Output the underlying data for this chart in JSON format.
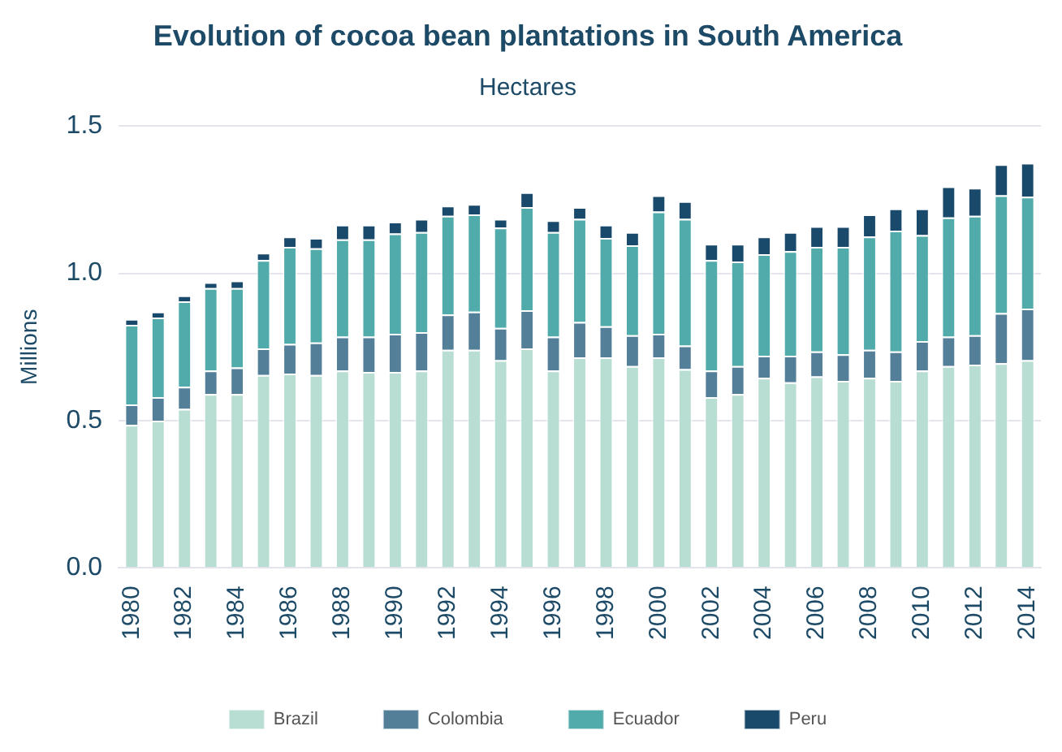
{
  "chart_data": {
    "type": "bar",
    "stacked": true,
    "title": "Evolution of cocoa bean plantations in South America",
    "subtitle": "Hectares",
    "ylabel": "Millions",
    "categories": [
      "1980",
      null,
      "1982",
      null,
      "1984",
      null,
      "1986",
      null,
      "1988",
      null,
      "1990",
      null,
      "1992",
      null,
      "1994",
      null,
      "1996",
      null,
      "1998",
      null,
      "2000",
      null,
      "2002",
      null,
      "2004",
      null,
      "2006",
      null,
      "2008",
      null,
      "2010",
      null,
      "2012",
      null,
      "2014"
    ],
    "series": [
      {
        "name": "Brazil",
        "color": "#b8ddd2",
        "values": [
          0.485,
          0.5,
          0.54,
          0.59,
          0.59,
          0.655,
          0.66,
          0.655,
          0.67,
          0.665,
          0.665,
          0.67,
          0.74,
          0.74,
          0.705,
          0.745,
          0.67,
          0.715,
          0.715,
          0.685,
          0.715,
          0.675,
          0.58,
          0.59,
          0.645,
          0.63,
          0.65,
          0.635,
          0.645,
          0.635,
          0.67,
          0.685,
          0.69,
          0.695,
          0.705
        ]
      },
      {
        "name": "Colombia",
        "color": "#537f99",
        "values": [
          0.07,
          0.08,
          0.075,
          0.08,
          0.09,
          0.09,
          0.1,
          0.11,
          0.115,
          0.12,
          0.13,
          0.13,
          0.12,
          0.13,
          0.11,
          0.13,
          0.115,
          0.12,
          0.105,
          0.105,
          0.08,
          0.08,
          0.09,
          0.095,
          0.075,
          0.09,
          0.085,
          0.09,
          0.095,
          0.1,
          0.1,
          0.1,
          0.1,
          0.17,
          0.175
        ]
      },
      {
        "name": "Ecuador",
        "color": "#52abab",
        "values": [
          0.27,
          0.27,
          0.29,
          0.28,
          0.27,
          0.3,
          0.33,
          0.32,
          0.33,
          0.33,
          0.34,
          0.34,
          0.335,
          0.33,
          0.34,
          0.35,
          0.355,
          0.35,
          0.3,
          0.305,
          0.415,
          0.43,
          0.375,
          0.355,
          0.345,
          0.355,
          0.355,
          0.365,
          0.385,
          0.41,
          0.36,
          0.405,
          0.405,
          0.4,
          0.38
        ]
      },
      {
        "name": "Peru",
        "color": "#1a4a6b",
        "values": [
          0.02,
          0.02,
          0.02,
          0.02,
          0.025,
          0.025,
          0.035,
          0.035,
          0.05,
          0.05,
          0.04,
          0.045,
          0.035,
          0.035,
          0.03,
          0.05,
          0.04,
          0.04,
          0.045,
          0.045,
          0.055,
          0.06,
          0.055,
          0.06,
          0.06,
          0.065,
          0.07,
          0.07,
          0.075,
          0.075,
          0.09,
          0.105,
          0.095,
          0.105,
          0.115
        ]
      }
    ],
    "ylim": [
      0,
      1.5
    ],
    "yticks": [
      {
        "value": 0,
        "label": "0.0"
      },
      {
        "value": 0.5,
        "label": "0.5"
      },
      {
        "value": 1,
        "label": "1.0"
      },
      {
        "value": 1.5,
        "label": "1.5"
      }
    ],
    "grid": "y",
    "legend": "bottom"
  }
}
